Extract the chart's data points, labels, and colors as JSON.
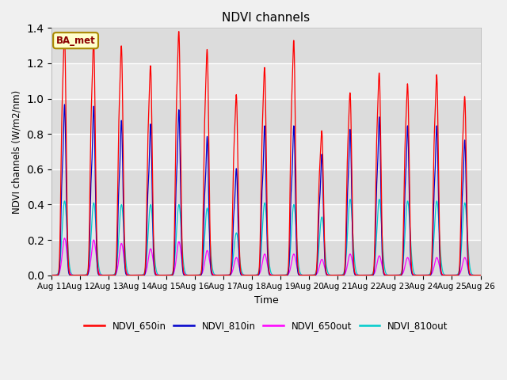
{
  "title": "NDVI channels",
  "xlabel": "Time",
  "ylabel": "NDVI channels (W/m2/nm)",
  "annotation_text": "BA_met",
  "ylim": [
    0.0,
    1.4
  ],
  "colors": {
    "NDVI_650in": "#ff0000",
    "NDVI_810in": "#0000cc",
    "NDVI_650out": "#ff00ff",
    "NDVI_810out": "#00cccc"
  },
  "x_tick_labels": [
    "Aug 11",
    "Aug 12",
    "Aug 13",
    "Aug 14",
    "Aug 15",
    "Aug 16",
    "Aug 17",
    "Aug 18",
    "Aug 19",
    "Aug 20",
    "Aug 21",
    "Aug 22",
    "Aug 23",
    "Aug 24",
    "Aug 25",
    "Aug 26"
  ],
  "bg_color": "#f0f0f0",
  "plot_bg_color": "#f0f0f0",
  "n_days": 15,
  "peaks_650in": [
    1.34,
    1.3,
    1.27,
    1.16,
    1.35,
    1.25,
    1.0,
    1.15,
    1.3,
    0.8,
    1.01,
    1.12,
    1.06,
    1.11,
    0.99
  ],
  "peaks_810in": [
    0.96,
    0.95,
    0.87,
    0.85,
    0.93,
    0.78,
    0.6,
    0.84,
    0.84,
    0.68,
    0.82,
    0.89,
    0.84,
    0.84,
    0.76
  ],
  "peaks_650out": [
    0.21,
    0.2,
    0.18,
    0.15,
    0.19,
    0.14,
    0.1,
    0.12,
    0.12,
    0.09,
    0.12,
    0.11,
    0.1,
    0.1,
    0.1
  ],
  "peaks_810out": [
    0.42,
    0.41,
    0.4,
    0.4,
    0.4,
    0.38,
    0.24,
    0.41,
    0.4,
    0.33,
    0.43,
    0.43,
    0.42,
    0.42,
    0.41
  ],
  "spike_offset": [
    0.45,
    0.47,
    0.44,
    0.46,
    0.45,
    0.44,
    0.46,
    0.45,
    0.47,
    0.45,
    0.44,
    0.46,
    0.45,
    0.47,
    0.45
  ],
  "spike2_offset": [
    0.35,
    0.37,
    0.34,
    0.36,
    0.35,
    0.34,
    0.36,
    0.35,
    0.37,
    0.35,
    0.34,
    0.36,
    0.35,
    0.37,
    0.35
  ]
}
